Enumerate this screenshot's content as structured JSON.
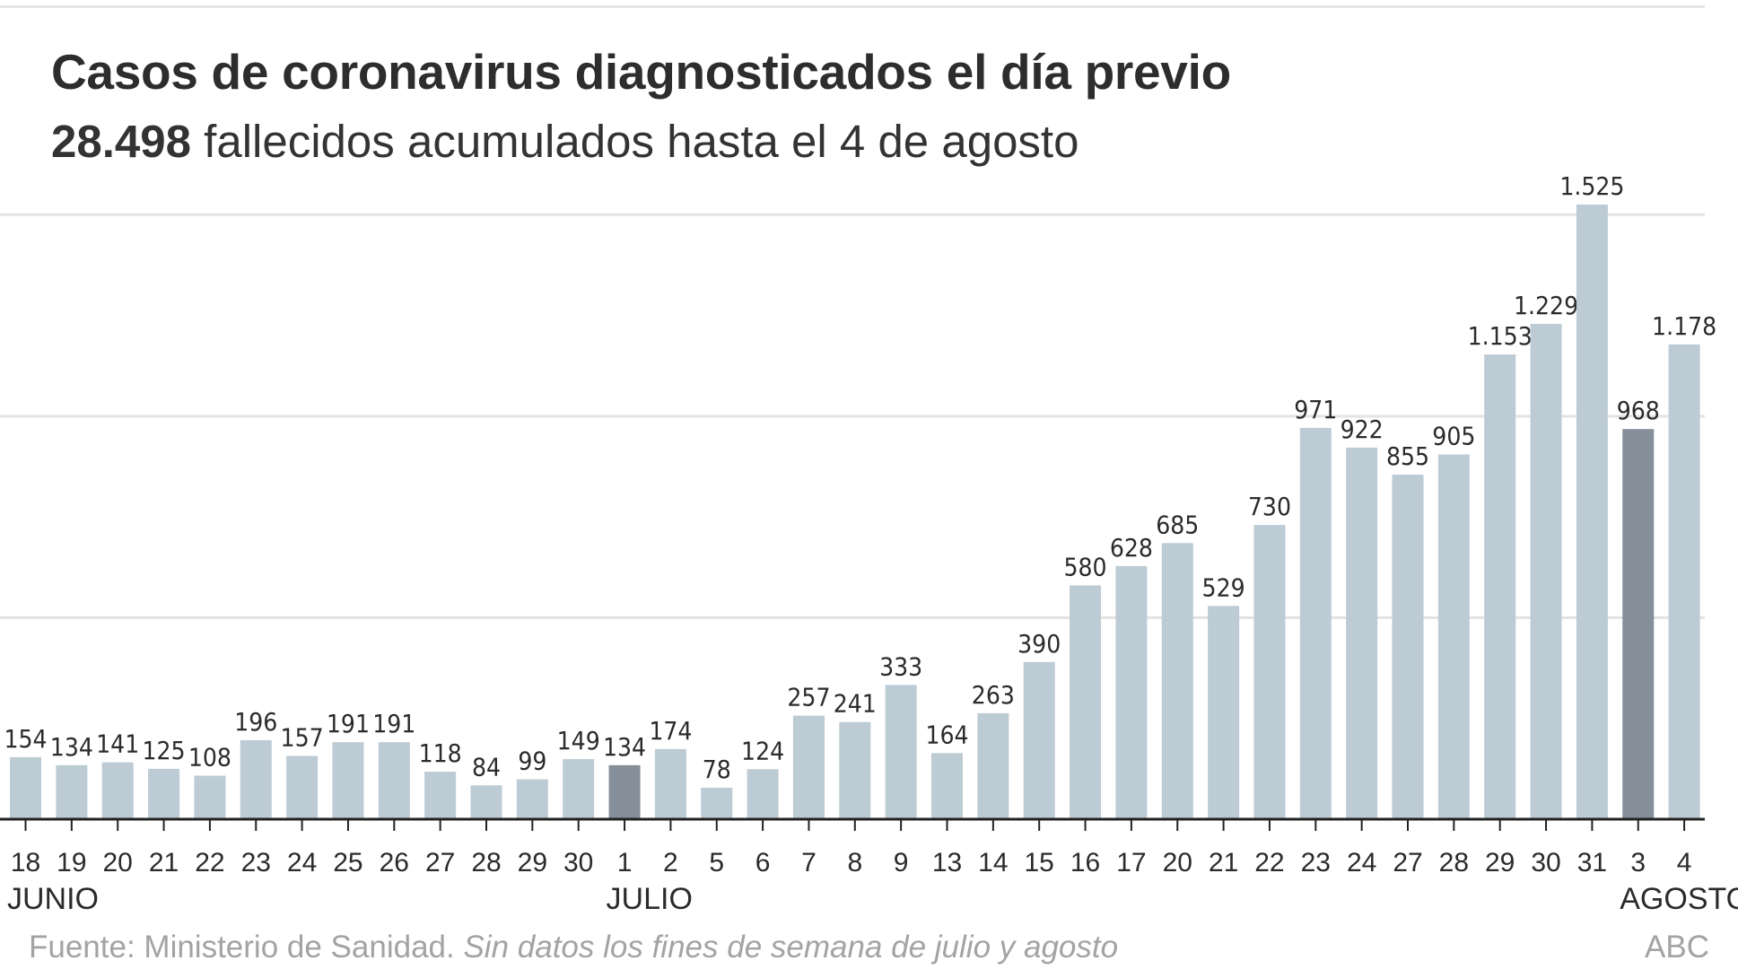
{
  "header": {
    "title": "Casos de coronavirus diagnosticados el día previo",
    "subtitle_bold": "28.498",
    "subtitle_rest": " fallecidos acumulados hasta el 4 de agosto"
  },
  "footer": {
    "source": "Fuente: Ministerio de Sanidad. ",
    "note": "Sin datos los fines de semana de julio y agosto",
    "credit": "ABC"
  },
  "colors": {
    "bar": "#bccbd4",
    "bar_highlight": "#858f99",
    "axis": "#222222",
    "grid": "#e3e3e3",
    "text": "#2b2b2b"
  },
  "chart_data": {
    "type": "bar",
    "title": "Casos de coronavirus diagnosticados el día previo",
    "subtitle": "28.498 fallecidos acumulados hasta el 4 de agosto",
    "categories": [
      "18",
      "19",
      "20",
      "21",
      "22",
      "23",
      "24",
      "25",
      "26",
      "27",
      "28",
      "29",
      "30",
      "1",
      "2",
      "5",
      "6",
      "7",
      "8",
      "9",
      "13",
      "14",
      "15",
      "16",
      "17",
      "20",
      "21",
      "22",
      "23",
      "24",
      "27",
      "28",
      "29",
      "30",
      "31",
      "3",
      "4"
    ],
    "values": [
      154,
      134,
      141,
      125,
      108,
      196,
      157,
      191,
      191,
      118,
      84,
      99,
      149,
      134,
      174,
      78,
      124,
      257,
      241,
      333,
      164,
      263,
      390,
      580,
      628,
      685,
      529,
      730,
      971,
      922,
      855,
      905,
      1153,
      1229,
      1525,
      968,
      1178
    ],
    "value_labels": [
      "154",
      "134",
      "141",
      "125",
      "108",
      "196",
      "157",
      "191",
      "191",
      "118",
      "84",
      "99",
      "149",
      "134",
      "174",
      "78",
      "124",
      "257",
      "241",
      "333",
      "164",
      "263",
      "390",
      "580",
      "628",
      "685",
      "529",
      "730",
      "971",
      "922",
      "855",
      "905",
      "1.153",
      "1.229",
      "1.525",
      "968",
      "1.178"
    ],
    "highlighted_categories_index": [
      13,
      35
    ],
    "month_labels": [
      {
        "label": "JUNIO",
        "start_index": 0
      },
      {
        "label": "JULIO",
        "start_index": 13
      },
      {
        "label": "AGOSTO",
        "start_index": 35
      }
    ],
    "ylim": [
      0,
      1525
    ],
    "gridlines": [
      500,
      1000,
      1500
    ],
    "grid": true,
    "legend": "none",
    "xlabel": "",
    "ylabel": ""
  }
}
